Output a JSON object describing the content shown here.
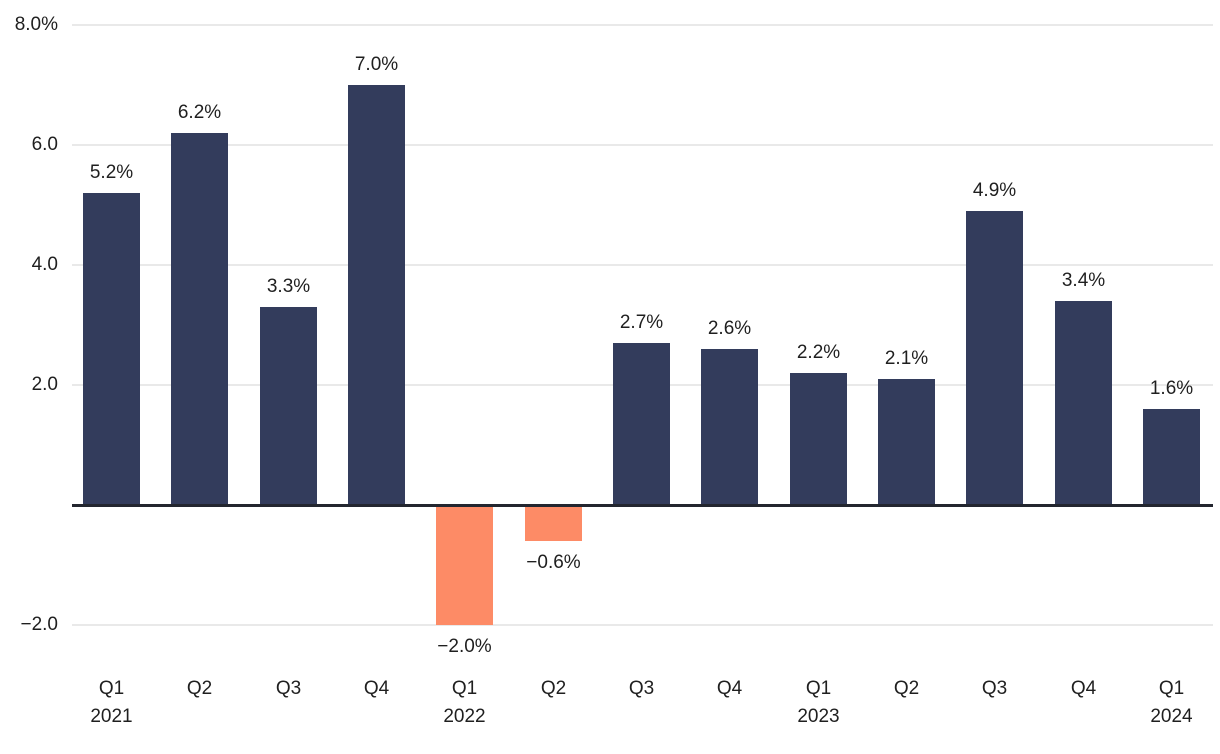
{
  "chart_data": {
    "type": "bar",
    "categories": [
      "Q1",
      "Q2",
      "Q3",
      "Q4",
      "Q1",
      "Q2",
      "Q3",
      "Q4",
      "Q1",
      "Q2",
      "Q3",
      "Q4",
      "Q1"
    ],
    "year_labels": [
      "2021",
      "",
      "",
      "",
      "2022",
      "",
      "",
      "",
      "2023",
      "",
      "",
      "",
      "2024"
    ],
    "values": [
      5.2,
      6.2,
      3.3,
      7.0,
      -2.0,
      -0.6,
      2.7,
      2.6,
      2.2,
      2.1,
      4.9,
      3.4,
      1.6
    ],
    "value_labels": [
      "5.2%",
      "6.2%",
      "3.3%",
      "7.0%",
      "−2.0%",
      "−0.6%",
      "2.7%",
      "2.6%",
      "2.2%",
      "2.1%",
      "4.9%",
      "3.4%",
      "1.6%"
    ],
    "y_ticks": [
      {
        "value": 8,
        "label": "8.0%"
      },
      {
        "value": 6,
        "label": "6.0"
      },
      {
        "value": 4,
        "label": "4.0"
      },
      {
        "value": 2,
        "label": "2.0"
      },
      {
        "value": -2,
        "label": "−2.0"
      }
    ],
    "ylim": [
      -2.7,
      8.4
    ],
    "title": "",
    "xlabel": "",
    "ylabel": "",
    "grid": "horizontal",
    "legend": "none",
    "colors": {
      "positive_bar": "#333C5C",
      "negative_bar": "#FD8B66",
      "gridline": "#E9E9E9",
      "zero_line": "#23262F",
      "text": "#1F1F1F"
    }
  }
}
